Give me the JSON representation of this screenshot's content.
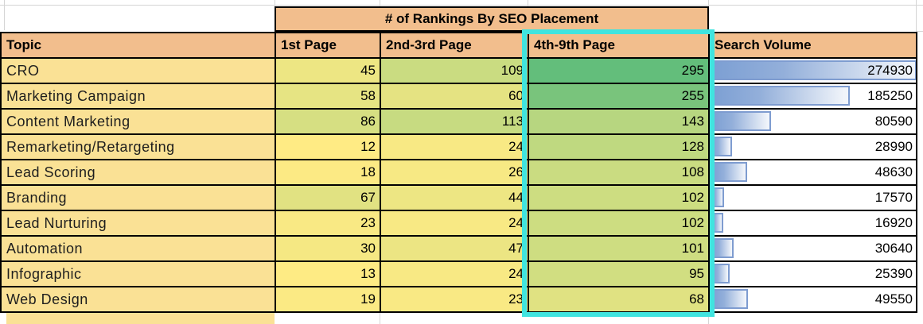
{
  "title": "# of Rankings By SEO Placement",
  "columns": [
    "Topic",
    "1st Page",
    "2nd-3rd Page",
    "4th-9th Page",
    "Search Volume"
  ],
  "rows": [
    {
      "topic": "CRO",
      "first_page": 45,
      "second_third_page": 109,
      "fourth_ninth_page": 295,
      "search_volume": 274930
    },
    {
      "topic": "Marketing Campaign",
      "first_page": 58,
      "second_third_page": 60,
      "fourth_ninth_page": 255,
      "search_volume": 185250
    },
    {
      "topic": "Content Marketing",
      "first_page": 86,
      "second_third_page": 113,
      "fourth_ninth_page": 143,
      "search_volume": 80590
    },
    {
      "topic": "Remarketing/Retargeting",
      "first_page": 12,
      "second_third_page": 24,
      "fourth_ninth_page": 128,
      "search_volume": 28990
    },
    {
      "topic": "Lead Scoring",
      "first_page": 18,
      "second_third_page": 26,
      "fourth_ninth_page": 108,
      "search_volume": 48630
    },
    {
      "topic": "Branding",
      "first_page": 67,
      "second_third_page": 44,
      "fourth_ninth_page": 102,
      "search_volume": 17570
    },
    {
      "topic": "Lead Nurturing",
      "first_page": 23,
      "second_third_page": 24,
      "fourth_ninth_page": 102,
      "search_volume": 16920
    },
    {
      "topic": "Automation",
      "first_page": 30,
      "second_third_page": 47,
      "fourth_ninth_page": 101,
      "search_volume": 30640
    },
    {
      "topic": "Infographic",
      "first_page": 13,
      "second_third_page": 24,
      "fourth_ninth_page": 95,
      "search_volume": 25390
    },
    {
      "topic": "Web Design",
      "first_page": 19,
      "second_third_page": 23,
      "fourth_ninth_page": 68,
      "search_volume": 49550
    }
  ],
  "color_scale": {
    "min": 12,
    "max": 295,
    "min_color": "#FFEB84",
    "max_color": "#63BE7B"
  },
  "data_bars": {
    "max": 274930
  },
  "colors": {
    "header-bg": "#F2BE8D",
    "topic-bg": "#FAE195",
    "selection": "#40E4DF",
    "bar-border": "#7E9CD0",
    "bar-fill-left": "#7C9FD3",
    "bar-fill-right": "#F0F4FA",
    "table-border": "#000000",
    "gridline": "#D5D5D5"
  }
}
